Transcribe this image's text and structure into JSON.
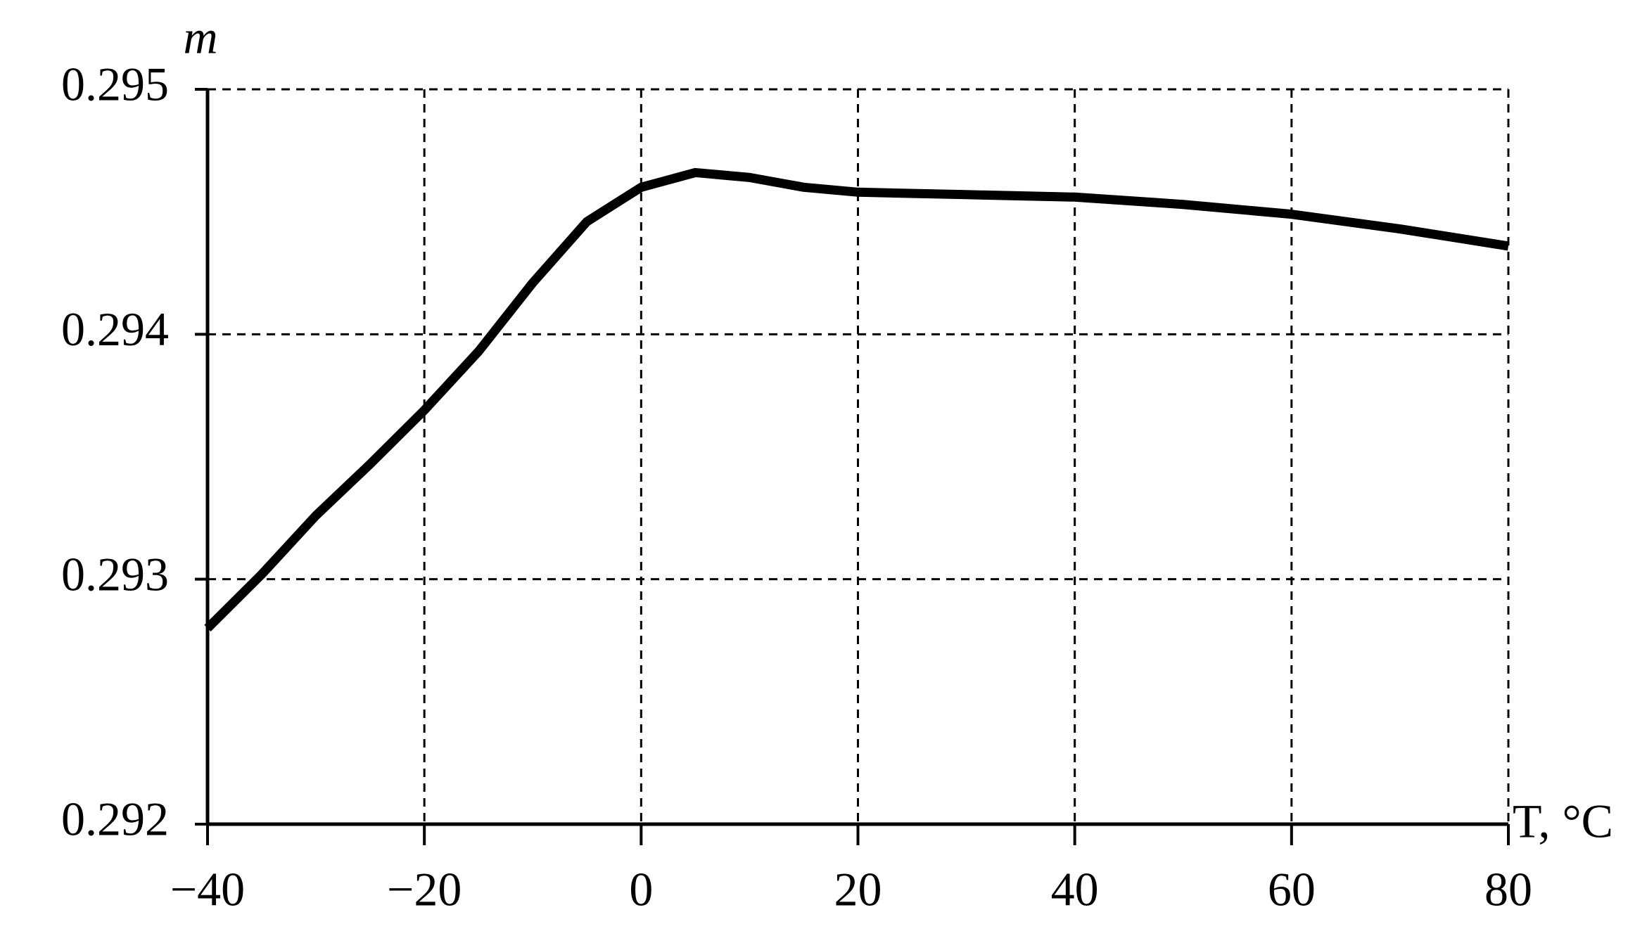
{
  "chart_data": {
    "type": "line",
    "y_label": "m",
    "x_label": "T, °C",
    "x": [
      -40,
      -35,
      -30,
      -25,
      -20,
      -15,
      -10,
      -5,
      0,
      5,
      10,
      15,
      20,
      30,
      40,
      50,
      60,
      70,
      80
    ],
    "values": [
      0.2928,
      0.29302,
      0.29326,
      0.29347,
      0.29369,
      0.29393,
      0.29421,
      0.29446,
      0.2946,
      0.29466,
      0.29464,
      0.2946,
      0.29458,
      0.29457,
      0.29456,
      0.29453,
      0.29449,
      0.29443,
      0.29436
    ],
    "color": "#000000",
    "xlim": [
      -40,
      80
    ],
    "ylim": [
      0.292,
      0.295
    ],
    "xticks": [
      {
        "value": -40,
        "label": "−40"
      },
      {
        "value": -20,
        "label": "−20"
      },
      0,
      20,
      40,
      60,
      80
    ],
    "yticks": [
      0.292,
      0.293,
      0.294,
      0.295
    ],
    "grid": true
  }
}
